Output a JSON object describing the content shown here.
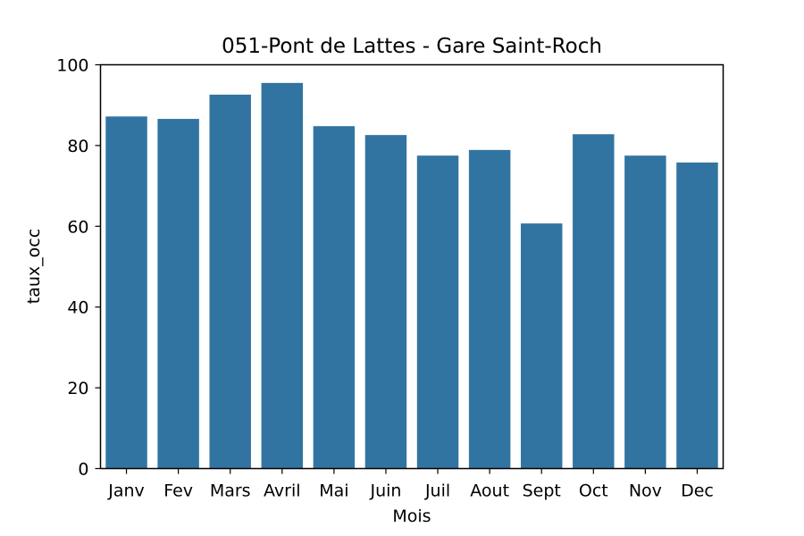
{
  "chart_data": {
    "type": "bar",
    "title": "051-Pont de Lattes - Gare Saint-Roch",
    "xlabel": "Mois",
    "ylabel": "taux_occ",
    "categories": [
      "Janv",
      "Fev",
      "Mars",
      "Avril",
      "Mai",
      "Juin",
      "Juil",
      "Aout",
      "Sept",
      "Oct",
      "Nov",
      "Dec"
    ],
    "values": [
      87.2,
      86.6,
      92.6,
      95.5,
      84.8,
      82.6,
      77.5,
      78.9,
      60.7,
      82.8,
      77.5,
      75.8
    ],
    "ylim": [
      0,
      100
    ],
    "yticks": [
      0,
      20,
      40,
      60,
      80,
      100
    ],
    "bar_color": "#3274a1",
    "grid": false,
    "legend": "none"
  }
}
